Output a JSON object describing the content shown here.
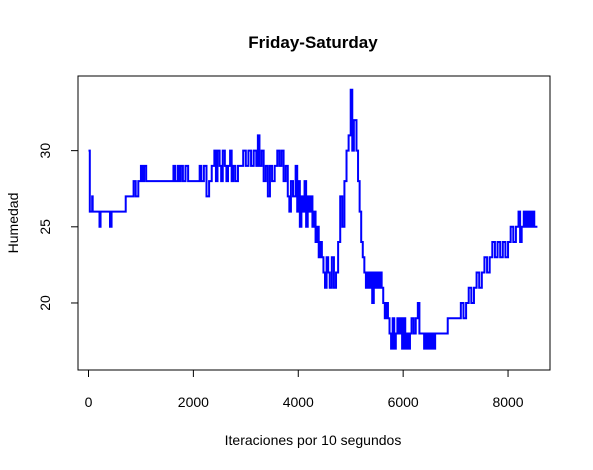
{
  "chart_data": {
    "type": "line",
    "title": "Friday-Saturday",
    "xlabel": "Iteraciones por 10 segundos",
    "ylabel": "Humedad",
    "xlim": [
      -200,
      8800
    ],
    "ylim": [
      15.6,
      34.9
    ],
    "x_ticks": [
      0,
      2000,
      4000,
      6000,
      8000
    ],
    "y_ticks": [
      20,
      25,
      30
    ],
    "grid": false,
    "color": "#0000ff",
    "series": [
      {
        "values": [
          [
            0,
            30
          ],
          [
            20,
            30
          ],
          [
            25,
            26
          ],
          [
            60,
            26
          ],
          [
            70,
            27
          ],
          [
            80,
            26
          ],
          [
            200,
            26
          ],
          [
            210,
            25
          ],
          [
            230,
            26
          ],
          [
            400,
            26
          ],
          [
            410,
            25
          ],
          [
            440,
            26
          ],
          [
            700,
            26
          ],
          [
            710,
            27
          ],
          [
            850,
            27
          ],
          [
            860,
            28
          ],
          [
            900,
            27
          ],
          [
            950,
            28
          ],
          [
            1000,
            29
          ],
          [
            1030,
            28
          ],
          [
            1060,
            29
          ],
          [
            1100,
            28
          ],
          [
            1150,
            28
          ],
          [
            1600,
            28
          ],
          [
            1620,
            29
          ],
          [
            1650,
            28
          ],
          [
            1700,
            29
          ],
          [
            1730,
            28
          ],
          [
            1760,
            29
          ],
          [
            1800,
            28
          ],
          [
            1850,
            29
          ],
          [
            1900,
            28
          ],
          [
            2100,
            28
          ],
          [
            2120,
            29
          ],
          [
            2150,
            28
          ],
          [
            2200,
            29
          ],
          [
            2250,
            27
          ],
          [
            2300,
            28
          ],
          [
            2350,
            29
          ],
          [
            2400,
            30
          ],
          [
            2430,
            28
          ],
          [
            2460,
            30
          ],
          [
            2500,
            29
          ],
          [
            2530,
            28
          ],
          [
            2560,
            30
          ],
          [
            2600,
            29
          ],
          [
            2630,
            28
          ],
          [
            2660,
            29
          ],
          [
            2700,
            30
          ],
          [
            2730,
            28
          ],
          [
            2760,
            29
          ],
          [
            2800,
            28
          ],
          [
            2850,
            29
          ],
          [
            2900,
            29
          ],
          [
            2950,
            30
          ],
          [
            3000,
            29
          ],
          [
            3050,
            30
          ],
          [
            3100,
            29
          ],
          [
            3150,
            30
          ],
          [
            3200,
            29
          ],
          [
            3230,
            31
          ],
          [
            3260,
            29
          ],
          [
            3300,
            30
          ],
          [
            3340,
            28
          ],
          [
            3380,
            29
          ],
          [
            3420,
            27
          ],
          [
            3460,
            29
          ],
          [
            3500,
            28
          ],
          [
            3550,
            29
          ],
          [
            3600,
            30
          ],
          [
            3640,
            29
          ],
          [
            3680,
            30
          ],
          [
            3720,
            28
          ],
          [
            3760,
            29
          ],
          [
            3800,
            27
          ],
          [
            3830,
            26
          ],
          [
            3860,
            28
          ],
          [
            3900,
            27
          ],
          [
            3950,
            29
          ],
          [
            3980,
            26
          ],
          [
            4000,
            28
          ],
          [
            4030,
            25
          ],
          [
            4060,
            27
          ],
          [
            4090,
            26
          ],
          [
            4120,
            28
          ],
          [
            4150,
            25
          ],
          [
            4180,
            27
          ],
          [
            4210,
            26
          ],
          [
            4240,
            27
          ],
          [
            4270,
            25
          ],
          [
            4300,
            26
          ],
          [
            4330,
            24
          ],
          [
            4360,
            25
          ],
          [
            4390,
            23
          ],
          [
            4420,
            24
          ],
          [
            4450,
            23
          ],
          [
            4480,
            22
          ],
          [
            4510,
            21
          ],
          [
            4540,
            23
          ],
          [
            4570,
            22
          ],
          [
            4600,
            21
          ],
          [
            4640,
            23
          ],
          [
            4680,
            21
          ],
          [
            4720,
            22
          ],
          [
            4760,
            24
          ],
          [
            4800,
            27
          ],
          [
            4840,
            25
          ],
          [
            4880,
            28
          ],
          [
            4920,
            30
          ],
          [
            4960,
            31
          ],
          [
            5000,
            34
          ],
          [
            5030,
            30
          ],
          [
            5060,
            32
          ],
          [
            5090,
            32
          ],
          [
            5110,
            30
          ],
          [
            5140,
            28
          ],
          [
            5170,
            26
          ],
          [
            5200,
            24
          ],
          [
            5230,
            23
          ],
          [
            5260,
            22
          ],
          [
            5290,
            21
          ],
          [
            5320,
            22
          ],
          [
            5350,
            21
          ],
          [
            5380,
            22
          ],
          [
            5410,
            20
          ],
          [
            5440,
            22
          ],
          [
            5470,
            21
          ],
          [
            5500,
            22
          ],
          [
            5530,
            21
          ],
          [
            5560,
            22
          ],
          [
            5590,
            21
          ],
          [
            5620,
            20
          ],
          [
            5650,
            19
          ],
          [
            5680,
            20
          ],
          [
            5710,
            19
          ],
          [
            5740,
            18
          ],
          [
            5770,
            17
          ],
          [
            5800,
            19
          ],
          [
            5830,
            17
          ],
          [
            5860,
            18
          ],
          [
            5890,
            19
          ],
          [
            5920,
            18
          ],
          [
            5950,
            19
          ],
          [
            5980,
            17
          ],
          [
            6010,
            19
          ],
          [
            6040,
            17
          ],
          [
            6070,
            18
          ],
          [
            6100,
            17
          ],
          [
            6130,
            18
          ],
          [
            6160,
            19
          ],
          [
            6200,
            18
          ],
          [
            6240,
            19
          ],
          [
            6280,
            20
          ],
          [
            6310,
            18
          ],
          [
            6350,
            18
          ],
          [
            6400,
            17
          ],
          [
            6430,
            18
          ],
          [
            6460,
            17
          ],
          [
            6490,
            18
          ],
          [
            6520,
            17
          ],
          [
            6550,
            18
          ],
          [
            6580,
            17
          ],
          [
            6610,
            18
          ],
          [
            6700,
            18
          ],
          [
            6800,
            18
          ],
          [
            6850,
            19
          ],
          [
            7050,
            19
          ],
          [
            7100,
            20
          ],
          [
            7150,
            19
          ],
          [
            7200,
            20
          ],
          [
            7250,
            21
          ],
          [
            7300,
            20
          ],
          [
            7350,
            21
          ],
          [
            7400,
            22
          ],
          [
            7450,
            21
          ],
          [
            7500,
            22
          ],
          [
            7550,
            23
          ],
          [
            7600,
            22
          ],
          [
            7650,
            23
          ],
          [
            7700,
            24
          ],
          [
            7750,
            23
          ],
          [
            7800,
            24
          ],
          [
            7850,
            23
          ],
          [
            7900,
            24
          ],
          [
            7950,
            23
          ],
          [
            8000,
            24
          ],
          [
            8050,
            25
          ],
          [
            8100,
            24
          ],
          [
            8150,
            25
          ],
          [
            8200,
            26
          ],
          [
            8230,
            24
          ],
          [
            8260,
            25
          ],
          [
            8300,
            26
          ],
          [
            8330,
            25
          ],
          [
            8360,
            26
          ],
          [
            8390,
            25
          ],
          [
            8420,
            26
          ],
          [
            8450,
            25
          ],
          [
            8480,
            26
          ],
          [
            8500,
            25
          ],
          [
            8560,
            25
          ]
        ]
      }
    ]
  }
}
